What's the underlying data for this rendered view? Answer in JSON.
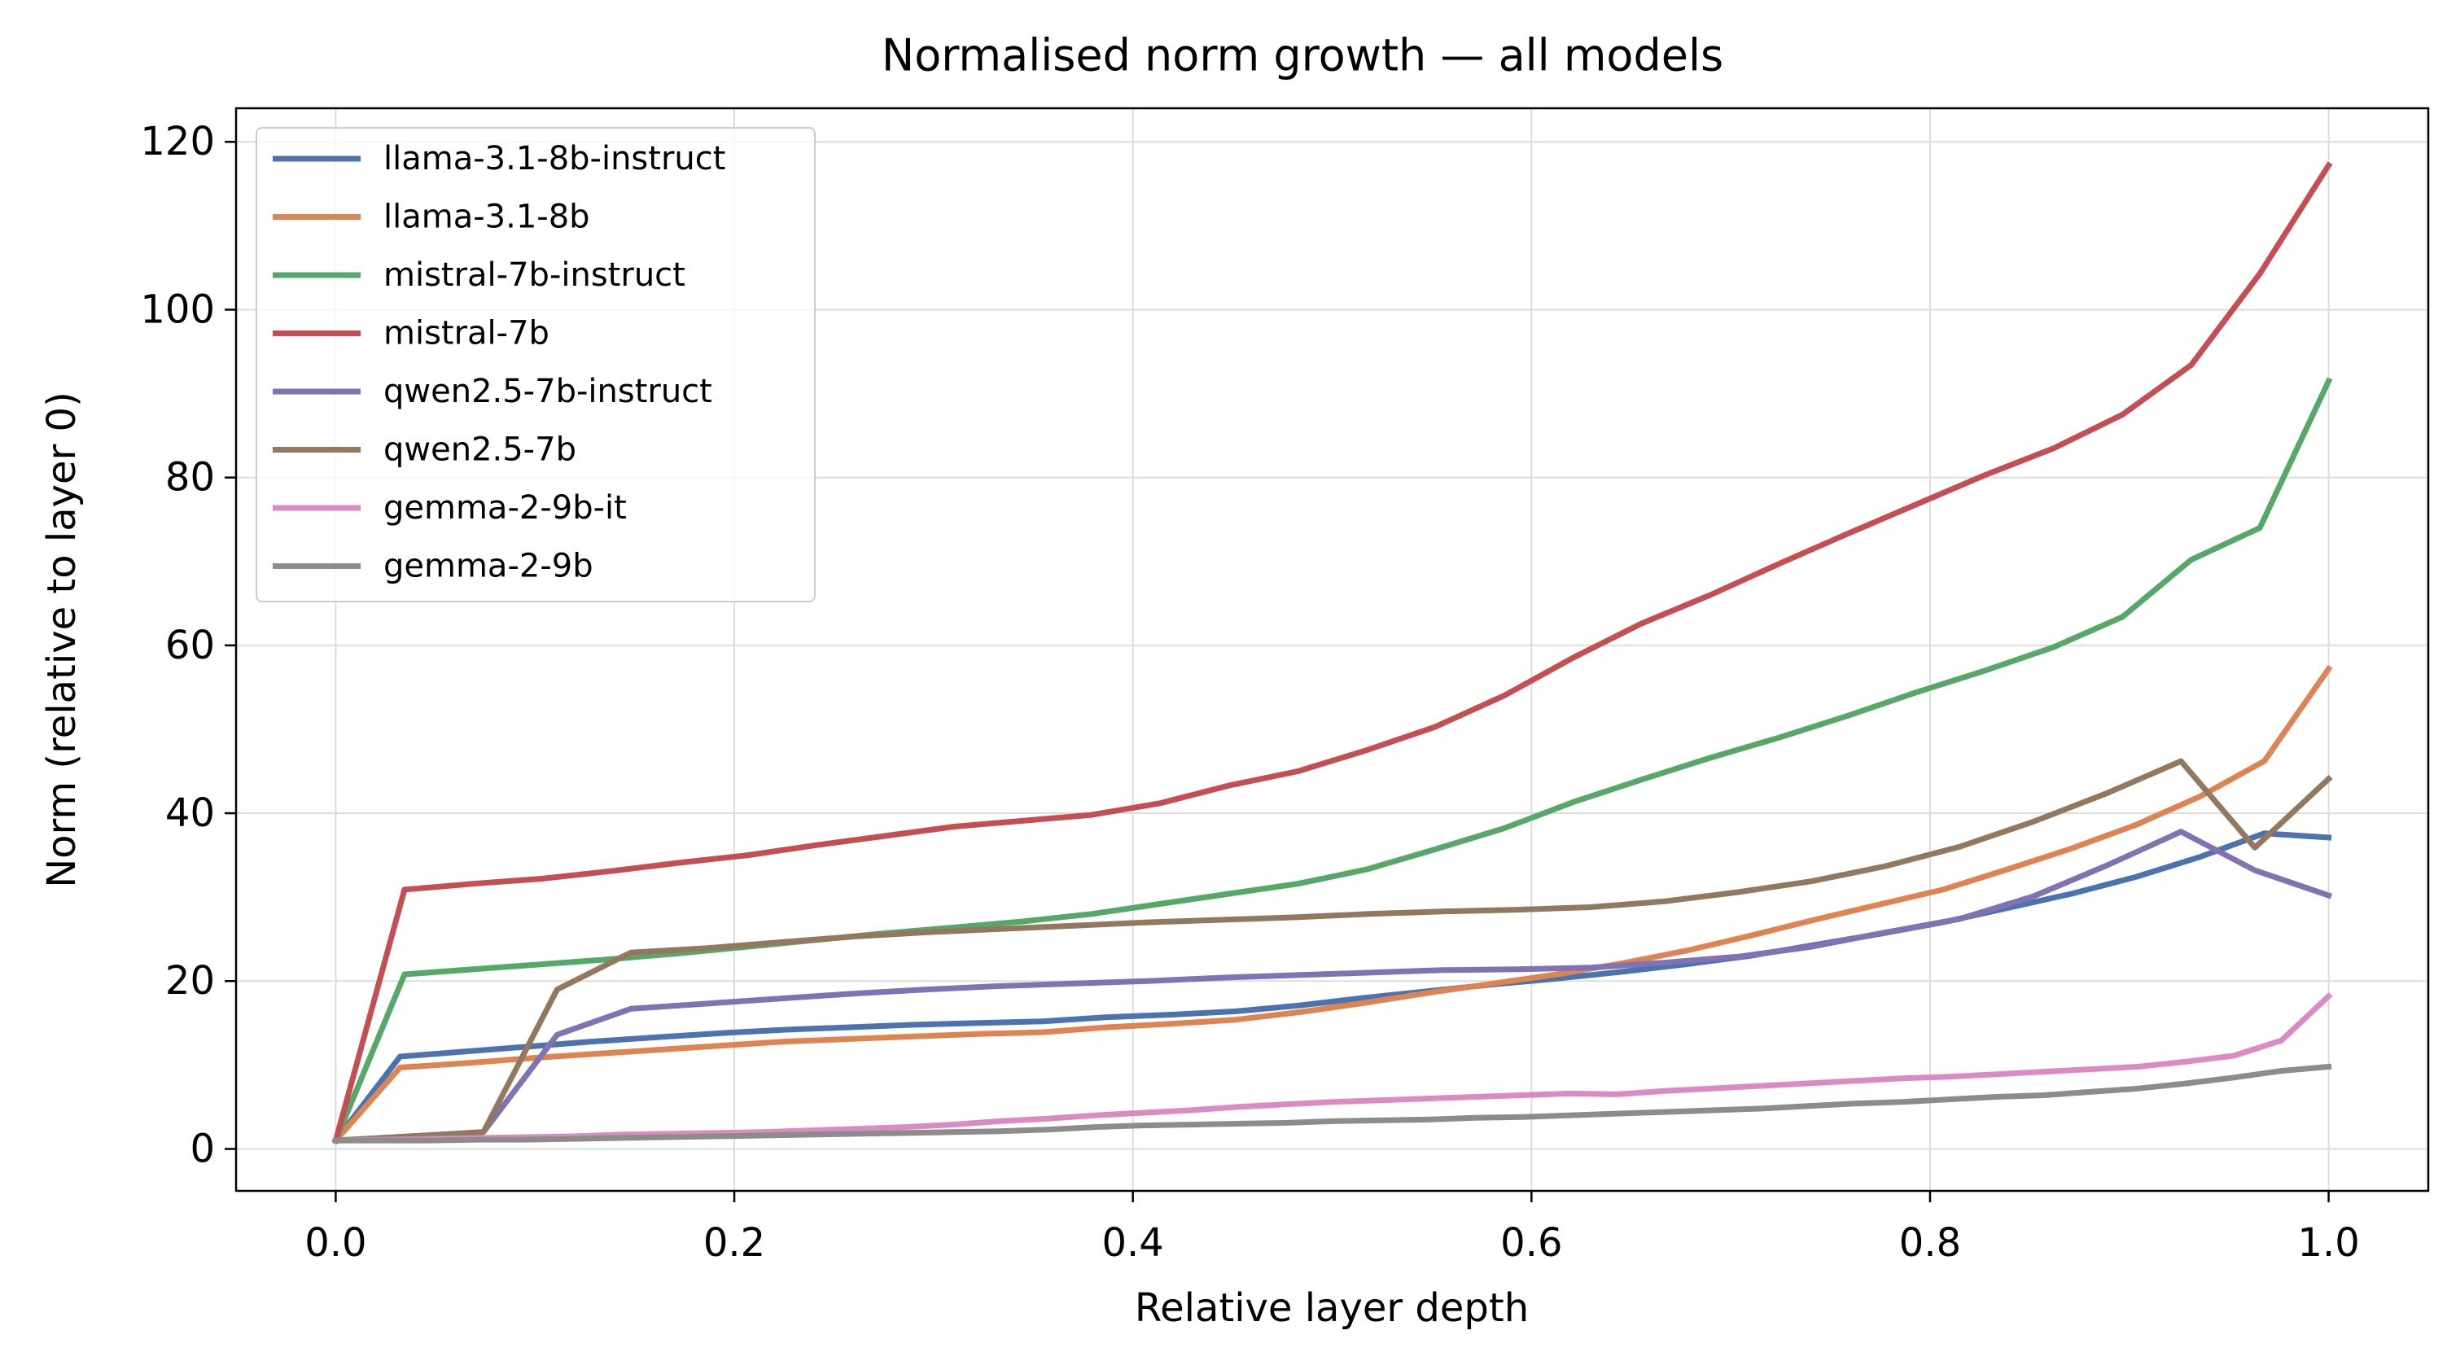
{
  "chart_data": {
    "type": "line",
    "title": "Normalised norm growth — all models",
    "xlabel": "Relative layer depth",
    "ylabel": "Norm (relative to layer 0)",
    "xlim": [
      -0.05,
      1.05
    ],
    "ylim": [
      -5,
      124
    ],
    "xticks": [
      0.0,
      0.2,
      0.4,
      0.6,
      0.8,
      1.0
    ],
    "xtick_labels": [
      "0.0",
      "0.2",
      "0.4",
      "0.6",
      "0.8",
      "1.0"
    ],
    "yticks": [
      0,
      20,
      40,
      60,
      80,
      100,
      120
    ],
    "ytick_labels": [
      "0",
      "20",
      "40",
      "60",
      "80",
      "100",
      "120"
    ],
    "grid": true,
    "legend_position": "top-left",
    "series": [
      {
        "name": "llama-3.1-8b-instruct",
        "color": "#4c72b0",
        "x": [
          0.0,
          0.0323,
          0.0645,
          0.0968,
          0.129,
          0.1613,
          0.1935,
          0.2258,
          0.2581,
          0.2903,
          0.3226,
          0.3548,
          0.3871,
          0.4194,
          0.4516,
          0.4839,
          0.5161,
          0.5484,
          0.5806,
          0.6129,
          0.6452,
          0.6774,
          0.7097,
          0.7419,
          0.7742,
          0.8065,
          0.8387,
          0.871,
          0.9032,
          0.9355,
          0.9677,
          1.0
        ],
        "y": [
          1.0,
          11.0,
          11.6,
          12.2,
          12.8,
          13.3,
          13.8,
          14.2,
          14.5,
          14.8,
          15.0,
          15.2,
          15.7,
          16.0,
          16.4,
          17.1,
          18.0,
          18.8,
          19.6,
          20.3,
          21.1,
          22.0,
          23.0,
          24.3,
          25.6,
          27.0,
          28.7,
          30.4,
          32.4,
          34.8,
          37.6,
          37.1
        ]
      },
      {
        "name": "llama-3.1-8b",
        "color": "#dd8452",
        "x": [
          0.0,
          0.0323,
          0.0645,
          0.0968,
          0.129,
          0.1613,
          0.1935,
          0.2258,
          0.2581,
          0.2903,
          0.3226,
          0.3548,
          0.3871,
          0.4194,
          0.4516,
          0.4839,
          0.5161,
          0.5484,
          0.5806,
          0.6129,
          0.6452,
          0.6774,
          0.7097,
          0.7419,
          0.7742,
          0.8065,
          0.8387,
          0.871,
          0.9032,
          0.9355,
          0.9677,
          1.0
        ],
        "y": [
          1.0,
          9.7,
          10.2,
          10.8,
          11.3,
          11.8,
          12.3,
          12.8,
          13.1,
          13.4,
          13.7,
          13.9,
          14.5,
          14.9,
          15.4,
          16.3,
          17.4,
          18.6,
          19.7,
          20.8,
          22.1,
          23.6,
          25.4,
          27.3,
          29.1,
          30.9,
          33.3,
          35.8,
          38.6,
          42.0,
          46.2,
          57.2
        ]
      },
      {
        "name": "mistral-7b-instruct",
        "color": "#55a868",
        "x": [
          0.0,
          0.0345,
          0.069,
          0.1034,
          0.1379,
          0.1724,
          0.2069,
          0.2414,
          0.2759,
          0.3103,
          0.3448,
          0.3793,
          0.4138,
          0.4483,
          0.4828,
          0.5172,
          0.5517,
          0.5862,
          0.6207,
          0.6552,
          0.6897,
          0.7241,
          0.7586,
          0.7931,
          0.8276,
          0.8621,
          0.8966,
          0.931,
          0.9655,
          1.0
        ],
        "y": [
          1.0,
          20.8,
          21.4,
          22.0,
          22.6,
          23.3,
          24.1,
          24.9,
          25.7,
          26.4,
          27.1,
          28.0,
          29.2,
          30.4,
          31.6,
          33.3,
          35.7,
          38.2,
          41.3,
          44.0,
          46.6,
          49.0,
          51.6,
          54.4,
          57.0,
          59.8,
          63.4,
          70.2,
          74.0,
          91.5
        ]
      },
      {
        "name": "mistral-7b",
        "color": "#c44e52",
        "x": [
          0.0,
          0.0345,
          0.069,
          0.1034,
          0.1379,
          0.1724,
          0.2069,
          0.2414,
          0.2759,
          0.3103,
          0.3448,
          0.3793,
          0.4138,
          0.4483,
          0.4828,
          0.5172,
          0.5517,
          0.5862,
          0.6207,
          0.6552,
          0.6897,
          0.7241,
          0.7586,
          0.7931,
          0.8276,
          0.8621,
          0.8966,
          0.931,
          0.9655,
          1.0
        ],
        "y": [
          1.0,
          30.9,
          31.6,
          32.2,
          33.1,
          34.1,
          35.0,
          36.2,
          37.3,
          38.4,
          39.1,
          39.8,
          41.2,
          43.3,
          45.0,
          47.5,
          50.3,
          54.0,
          58.5,
          62.6,
          66.0,
          69.7,
          73.3,
          76.8,
          80.3,
          83.5,
          87.5,
          93.4,
          104.3,
          117.2
        ]
      },
      {
        "name": "qwen2.5-7b-instruct",
        "color": "#8172b3",
        "x": [
          0.0,
          0.037,
          0.0741,
          0.1111,
          0.1481,
          0.1852,
          0.2222,
          0.2593,
          0.2963,
          0.3333,
          0.3704,
          0.4074,
          0.4444,
          0.4815,
          0.5185,
          0.5556,
          0.5926,
          0.6296,
          0.6667,
          0.7037,
          0.7407,
          0.7778,
          0.8148,
          0.8519,
          0.8889,
          0.9259,
          0.963,
          1.0
        ],
        "y": [
          1.0,
          1.5,
          2.0,
          13.6,
          16.7,
          17.3,
          17.9,
          18.5,
          19.0,
          19.4,
          19.7,
          20.0,
          20.4,
          20.7,
          21.0,
          21.3,
          21.4,
          21.6,
          22.2,
          22.9,
          24.1,
          25.8,
          27.4,
          30.1,
          33.8,
          37.8,
          33.2,
          30.2
        ]
      },
      {
        "name": "qwen2.5-7b",
        "color": "#937860",
        "x": [
          0.0,
          0.037,
          0.0741,
          0.1111,
          0.1481,
          0.1852,
          0.2222,
          0.2593,
          0.2963,
          0.3333,
          0.3704,
          0.4074,
          0.4444,
          0.4815,
          0.5185,
          0.5556,
          0.5926,
          0.6296,
          0.6667,
          0.7037,
          0.7407,
          0.7778,
          0.8148,
          0.8519,
          0.8889,
          0.9259,
          0.963,
          1.0
        ],
        "y": [
          1.0,
          1.5,
          2.0,
          19.0,
          23.4,
          23.9,
          24.6,
          25.3,
          25.8,
          26.2,
          26.6,
          27.0,
          27.3,
          27.6,
          28.0,
          28.3,
          28.5,
          28.8,
          29.5,
          30.6,
          31.9,
          33.7,
          36.0,
          39.0,
          42.4,
          46.2,
          35.9,
          44.1
        ]
      },
      {
        "name": "gemma-2-9b-it",
        "color": "#da8bc3",
        "x": [
          0.0,
          0.0238,
          0.0476,
          0.0714,
          0.0952,
          0.119,
          0.1429,
          0.1667,
          0.1905,
          0.2143,
          0.2381,
          0.2619,
          0.2857,
          0.3095,
          0.3333,
          0.3571,
          0.381,
          0.4048,
          0.4286,
          0.4524,
          0.4762,
          0.5,
          0.5238,
          0.5476,
          0.5714,
          0.5952,
          0.619,
          0.6429,
          0.6667,
          0.6905,
          0.7143,
          0.7381,
          0.7619,
          0.7857,
          0.8095,
          0.8333,
          0.8571,
          0.881,
          0.9048,
          0.9286,
          0.9524,
          0.9762,
          1.0
        ],
        "y": [
          1.0,
          1.1,
          1.2,
          1.3,
          1.4,
          1.5,
          1.7,
          1.8,
          1.9,
          2.0,
          2.2,
          2.4,
          2.6,
          2.9,
          3.3,
          3.6,
          4.0,
          4.3,
          4.6,
          5.0,
          5.3,
          5.6,
          5.8,
          6.0,
          6.2,
          6.4,
          6.6,
          6.5,
          6.9,
          7.2,
          7.5,
          7.8,
          8.1,
          8.4,
          8.6,
          8.9,
          9.2,
          9.5,
          9.8,
          10.4,
          11.1,
          12.9,
          18.2
        ]
      },
      {
        "name": "gemma-2-9b",
        "color": "#8c8c8c",
        "x": [
          0.0,
          0.0238,
          0.0476,
          0.0714,
          0.0952,
          0.119,
          0.1429,
          0.1667,
          0.1905,
          0.2143,
          0.2381,
          0.2619,
          0.2857,
          0.3095,
          0.3333,
          0.3571,
          0.381,
          0.4048,
          0.4286,
          0.4524,
          0.4762,
          0.5,
          0.5238,
          0.5476,
          0.5714,
          0.5952,
          0.619,
          0.6429,
          0.6667,
          0.6905,
          0.7143,
          0.7381,
          0.7619,
          0.7857,
          0.8095,
          0.8333,
          0.8571,
          0.881,
          0.9048,
          0.9286,
          0.9524,
          0.9762,
          1.0
        ],
        "y": [
          1.0,
          1.0,
          1.0,
          1.1,
          1.1,
          1.2,
          1.3,
          1.4,
          1.5,
          1.6,
          1.7,
          1.8,
          1.9,
          2.0,
          2.1,
          2.3,
          2.6,
          2.8,
          2.9,
          3.0,
          3.1,
          3.3,
          3.4,
          3.5,
          3.7,
          3.8,
          4.0,
          4.2,
          4.4,
          4.6,
          4.8,
          5.1,
          5.4,
          5.6,
          5.9,
          6.2,
          6.4,
          6.8,
          7.2,
          7.8,
          8.5,
          9.3,
          9.8
        ]
      }
    ]
  }
}
